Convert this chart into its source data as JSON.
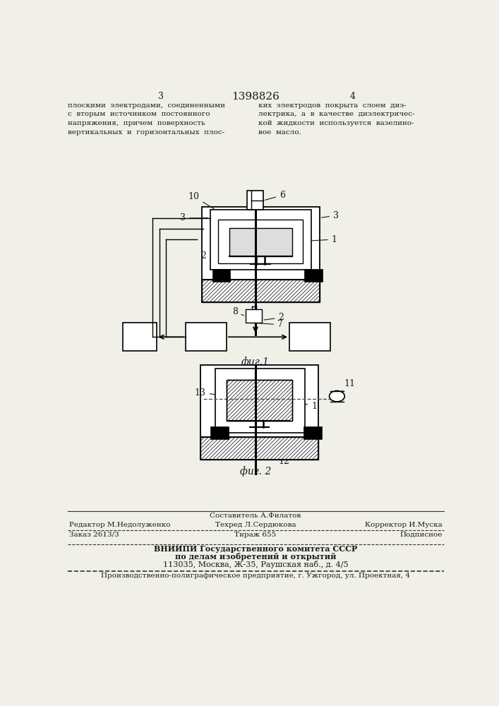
{
  "bg_color": "#f0efe8",
  "text_color": "#1a1a1a",
  "title": "1398826",
  "page_left": "3",
  "page_right": "4",
  "text_left": "плоскими  электродами,  соединенными\nс  вторым  источником  постоянного\nнапряжения,  причем  поверхность\nвертикальных  и  горизонтальных  плос-",
  "text_right": "ких  электродов  покрыта  слоем  диэ-\nлектрика,  а  в  качестве  диэлектричес-\nкой  жидкости  используется  вазелино-\nвое  масло.",
  "fig1_label": "фиг.1",
  "fig2_label": "фиг. 2",
  "footer_compose_top": "Составитель А.Филатов",
  "footer_editor": "Редактор М.Недолуженко",
  "footer_techred": "Техред Л.Сердюкова",
  "footer_correct": "Корректор И.Муска",
  "footer_order": "Заказ 2613/3",
  "footer_tiraz": "Тираж 655",
  "footer_podp": "Подписное",
  "footer_vnipi1": "ВНИИПИ Государственного комитета СССР",
  "footer_vnipi2": "по делам изобретений и открытий",
  "footer_vnipi3": "113035, Москва, Ж-35, Раушская наб., д. 4/5",
  "footer_bottom": "Производственно-полиграфическое предприятие, г. Ужгород, ул. Проектная, 4"
}
